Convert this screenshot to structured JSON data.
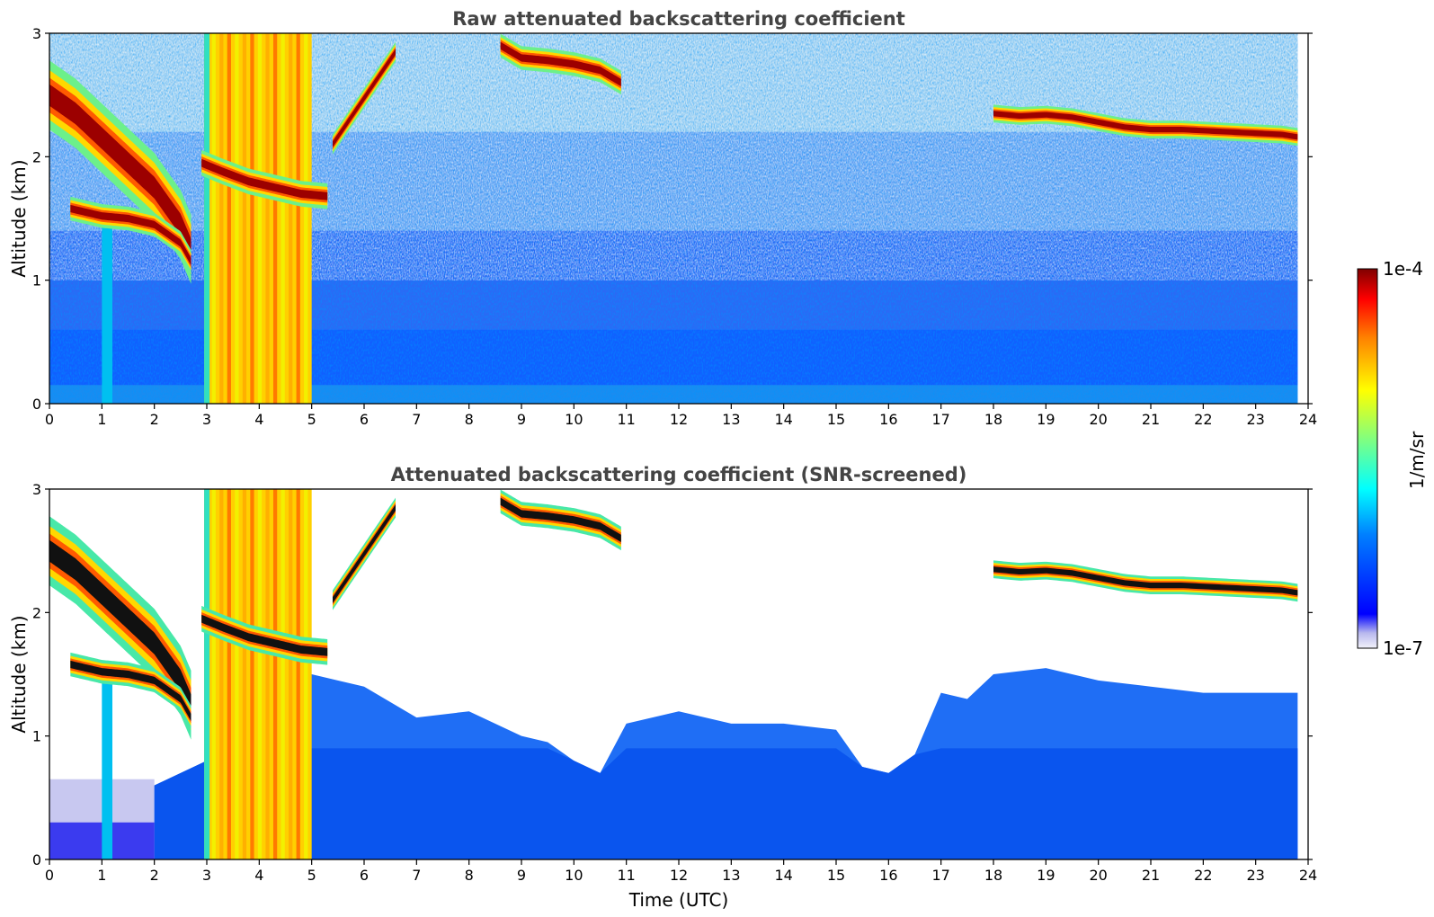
{
  "chart_data": [
    {
      "type": "heatmap",
      "title": "Raw attenuated backscattering coefficient",
      "xlabel": "",
      "ylabel": "Altitude (km)",
      "xlim": [
        0,
        24
      ],
      "ylim": [
        0,
        3
      ],
      "x_ticks": [
        "0",
        "1",
        "2",
        "3",
        "4",
        "5",
        "6",
        "7",
        "8",
        "9",
        "10",
        "11",
        "12",
        "13",
        "14",
        "15",
        "16",
        "17",
        "18",
        "19",
        "20",
        "21",
        "22",
        "23",
        "24"
      ],
      "y_ticks": [
        "0",
        "1",
        "2",
        "3"
      ],
      "screened": false,
      "features": [
        {
          "kind": "cloud",
          "x": [
            0.0,
            0.5,
            1.0,
            1.5,
            2.0,
            2.5,
            2.7
          ],
          "y": [
            2.5,
            2.35,
            2.15,
            1.95,
            1.75,
            1.45,
            1.25
          ],
          "width": 0.35
        },
        {
          "kind": "cloud",
          "x": [
            0.4,
            1.0,
            1.5,
            2.0,
            2.5,
            2.7
          ],
          "y": [
            1.58,
            1.52,
            1.5,
            1.45,
            1.3,
            1.15
          ],
          "width": 0.12
        },
        {
          "kind": "cloud",
          "x": [
            2.9,
            3.3,
            3.8,
            4.3,
            4.8,
            5.3
          ],
          "y": [
            1.95,
            1.88,
            1.8,
            1.75,
            1.7,
            1.68
          ],
          "width": 0.13
        },
        {
          "kind": "cloud",
          "x": [
            5.4,
            5.8,
            6.2,
            6.6
          ],
          "y": [
            2.1,
            2.35,
            2.6,
            2.85
          ],
          "width": 0.1
        },
        {
          "kind": "cloud",
          "x": [
            8.6,
            9.0,
            9.5,
            10.0,
            10.5,
            10.9
          ],
          "y": [
            2.9,
            2.8,
            2.78,
            2.75,
            2.7,
            2.6
          ],
          "width": 0.12
        },
        {
          "kind": "cloud",
          "x": [
            18.0,
            18.5,
            19.0,
            19.5,
            20.0,
            20.5,
            21.0,
            21.6,
            23.5,
            23.8
          ],
          "y": [
            2.35,
            2.33,
            2.34,
            2.32,
            2.28,
            2.24,
            2.22,
            2.22,
            2.18,
            2.16
          ],
          "width": 0.09
        }
      ],
      "columns": [
        {
          "x0": 2.95,
          "x1": 5.0,
          "y1": 3.0,
          "level": 0.7
        },
        {
          "x0": 1.0,
          "x1": 1.2,
          "y1": 1.6,
          "level": 0.4
        }
      ]
    },
    {
      "type": "heatmap",
      "title": "Attenuated backscattering coefficient (SNR-screened)",
      "xlabel": "Time (UTC)",
      "ylabel": "Altitude (km)",
      "xlim": [
        0,
        24
      ],
      "ylim": [
        0,
        3
      ],
      "x_ticks": [
        "0",
        "1",
        "2",
        "3",
        "4",
        "5",
        "6",
        "7",
        "8",
        "9",
        "10",
        "11",
        "12",
        "13",
        "14",
        "15",
        "16",
        "17",
        "18",
        "19",
        "20",
        "21",
        "22",
        "23",
        "24"
      ],
      "y_ticks": [
        "0",
        "1",
        "2",
        "3"
      ],
      "screened": true,
      "boundary_layer_top": {
        "x": [
          0,
          2,
          3,
          4,
          5,
          6,
          7,
          8,
          9,
          9.5,
          10,
          10.5,
          11,
          12,
          13,
          14,
          15,
          15.5,
          16,
          16.5,
          17,
          17.5,
          18,
          19,
          20,
          21,
          22,
          23,
          23.8
        ],
        "y": [
          0.6,
          0.6,
          0.8,
          1.3,
          1.5,
          1.4,
          1.15,
          1.2,
          1.0,
          0.95,
          0.8,
          0.7,
          1.1,
          1.2,
          1.1,
          1.1,
          1.05,
          0.75,
          0.7,
          0.85,
          1.35,
          1.3,
          1.5,
          1.55,
          1.45,
          1.4,
          1.35,
          1.35,
          1.35
        ]
      },
      "features": [
        {
          "kind": "cloud",
          "x": [
            0.0,
            0.5,
            1.0,
            1.5,
            2.0,
            2.5,
            2.7
          ],
          "y": [
            2.5,
            2.35,
            2.15,
            1.95,
            1.75,
            1.45,
            1.25
          ],
          "width": 0.35
        },
        {
          "kind": "cloud",
          "x": [
            0.4,
            1.0,
            1.5,
            2.0,
            2.5,
            2.7
          ],
          "y": [
            1.58,
            1.52,
            1.5,
            1.45,
            1.3,
            1.15
          ],
          "width": 0.12
        },
        {
          "kind": "cloud",
          "x": [
            2.9,
            3.3,
            3.8,
            4.3,
            4.8,
            5.3
          ],
          "y": [
            1.95,
            1.88,
            1.8,
            1.75,
            1.7,
            1.68
          ],
          "width": 0.13
        },
        {
          "kind": "cloud",
          "x": [
            5.4,
            5.8,
            6.2,
            6.6
          ],
          "y": [
            2.1,
            2.35,
            2.6,
            2.85
          ],
          "width": 0.1
        },
        {
          "kind": "cloud",
          "x": [
            8.6,
            9.0,
            9.5,
            10.0,
            10.5,
            10.9
          ],
          "y": [
            2.9,
            2.8,
            2.78,
            2.75,
            2.7,
            2.6
          ],
          "width": 0.12
        },
        {
          "kind": "cloud",
          "x": [
            18.0,
            18.5,
            19.0,
            19.5,
            20.0,
            20.5,
            21.0,
            21.6,
            23.5,
            23.8
          ],
          "y": [
            2.35,
            2.33,
            2.34,
            2.32,
            2.28,
            2.24,
            2.22,
            2.22,
            2.18,
            2.16
          ],
          "width": 0.09
        }
      ],
      "columns": [
        {
          "x0": 2.95,
          "x1": 5.0,
          "y1": 3.0,
          "level": 0.7
        },
        {
          "x0": 1.0,
          "x1": 1.2,
          "y1": 1.6,
          "level": 0.4
        }
      ]
    }
  ],
  "colorbar": {
    "label": "1/m/sr",
    "max_label": "1e-4",
    "min_label": "1e-7",
    "colormap": "jet",
    "scale": "log"
  },
  "colors": {
    "low": "#e6e6f5",
    "mid_low": "#0000ff",
    "mid": "#00ffff",
    "mid_high": "#ffff00",
    "high": "#ff0000",
    "max": "#800000",
    "title_gray": "#444444"
  }
}
